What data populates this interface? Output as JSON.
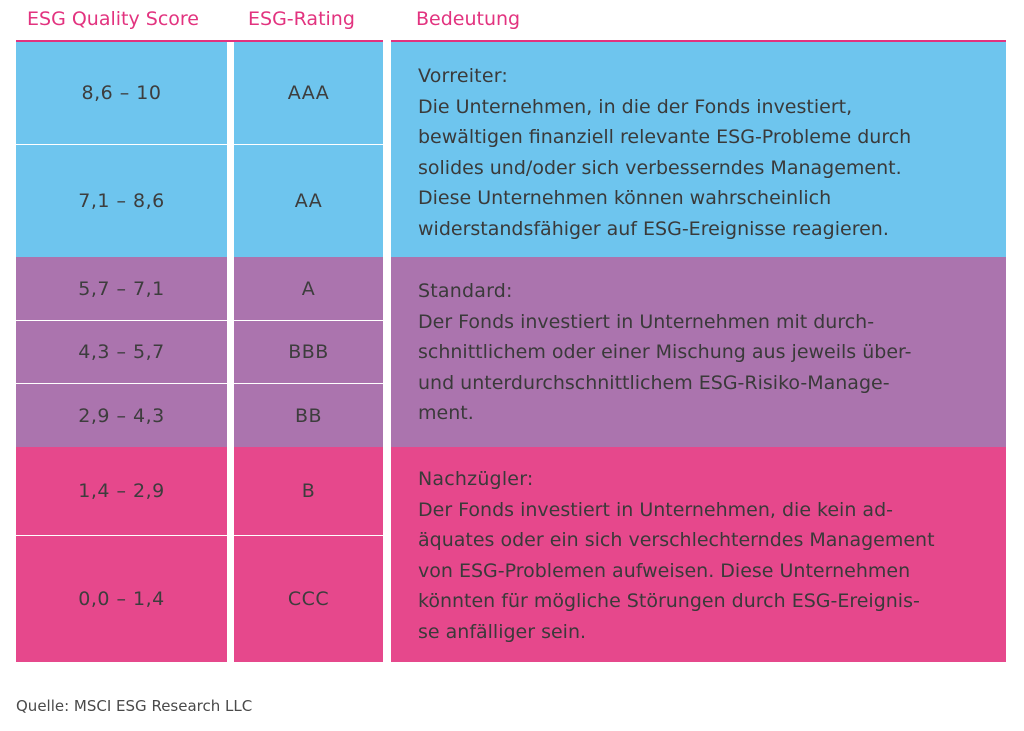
{
  "headers": {
    "score": "ESG Quality Score",
    "rating": "ESG-Rating",
    "meaning": "Bedeutung"
  },
  "rows": [
    {
      "score": "8,6 – 10",
      "rating": "AAA"
    },
    {
      "score": "7,1 – 8,6",
      "rating": "AA"
    },
    {
      "score": "5,7 – 7,1",
      "rating": "A"
    },
    {
      "score": "4,3 – 5,7",
      "rating": "BBB"
    },
    {
      "score": "2,9 – 4,3",
      "rating": "BB"
    },
    {
      "score": "1,4 – 2,9",
      "rating": "B"
    },
    {
      "score": "0,0 – 1,4",
      "rating": "CCC"
    }
  ],
  "groups": [
    {
      "title": "Vorreiter:",
      "body": "Die Unternehmen, in die der Fonds investiert,\nbewältigen finanziell relevante ESG-Probleme durch\nsolides und/oder sich verbesserndes Management.\nDiese Unternehmen können wahrscheinlich\nwiderstandsfähiger auf ESG-Ereignisse reagieren.",
      "color": "#6ec5ee"
    },
    {
      "title": "Standard:",
      "body": "Der Fonds investiert in Unternehmen mit durch-\nschnittlichem oder einer Mischung aus jeweils über-\nund unterdurchschnittlichem ESG-Risiko-Manage-\nment.",
      "color": "#ab74ae"
    },
    {
      "title": "Nachzügler:",
      "body": "Der Fonds investiert in Unternehmen, die kein ad-\näquates oder ein sich verschlechterndes Management\nvon ESG-Problemen aufweisen. Diese Unternehmen\nkönnten für mögliche Störungen durch ESG-Ereignis-\nse anfälliger sein.",
      "color": "#e6488c"
    }
  ],
  "colors": {
    "accent": "#e2337f",
    "blue": "#6ec5ee",
    "purple": "#ab74ae",
    "pink": "#e6488c"
  },
  "source": "Quelle: MSCI ESG Research LLC"
}
